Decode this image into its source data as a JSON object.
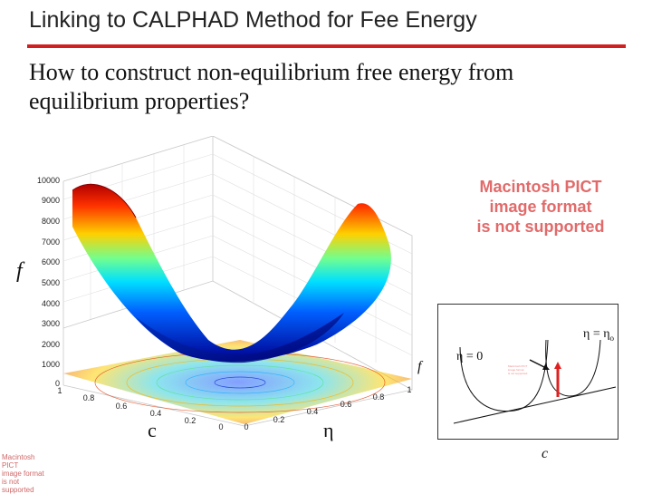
{
  "slide": {
    "title": "Linking to CALPHAD Method for Fee Energy",
    "question": "How to construct non-equilibrium free energy from equilibrium properties?"
  },
  "surface_plot": {
    "z_ticks": [
      "10000",
      "9000",
      "8000",
      "7000",
      "6000",
      "5000",
      "4000",
      "3000",
      "2000",
      "1000",
      "0"
    ],
    "c_ticks": [
      "1",
      "0.8",
      "0.6",
      "0.4",
      "0.2",
      "0"
    ],
    "eta_ticks": [
      "0",
      "0.2",
      "0.4",
      "0.6",
      "0.8",
      "1"
    ],
    "z_label": "f",
    "x_label": "c",
    "y_label": "η",
    "colormap": [
      "#00008f",
      "#0050ff",
      "#00dfff",
      "#70ff90",
      "#ffd000",
      "#ff4000",
      "#a00000"
    ]
  },
  "placeholder": {
    "main_text": "Macintosh PICT image format is not supported",
    "main_lines": [
      "Macintosh PICT",
      "image format",
      "is not supported"
    ],
    "small_lines": [
      "Macintosh PICT",
      "image format",
      "is not supported"
    ]
  },
  "schematic": {
    "f_label": "f",
    "c_label": "c",
    "eta0_label": "η = 0",
    "eta_eq_label": "η = η",
    "eta_eq_sub": "o",
    "arrow_color": "#e02020"
  }
}
